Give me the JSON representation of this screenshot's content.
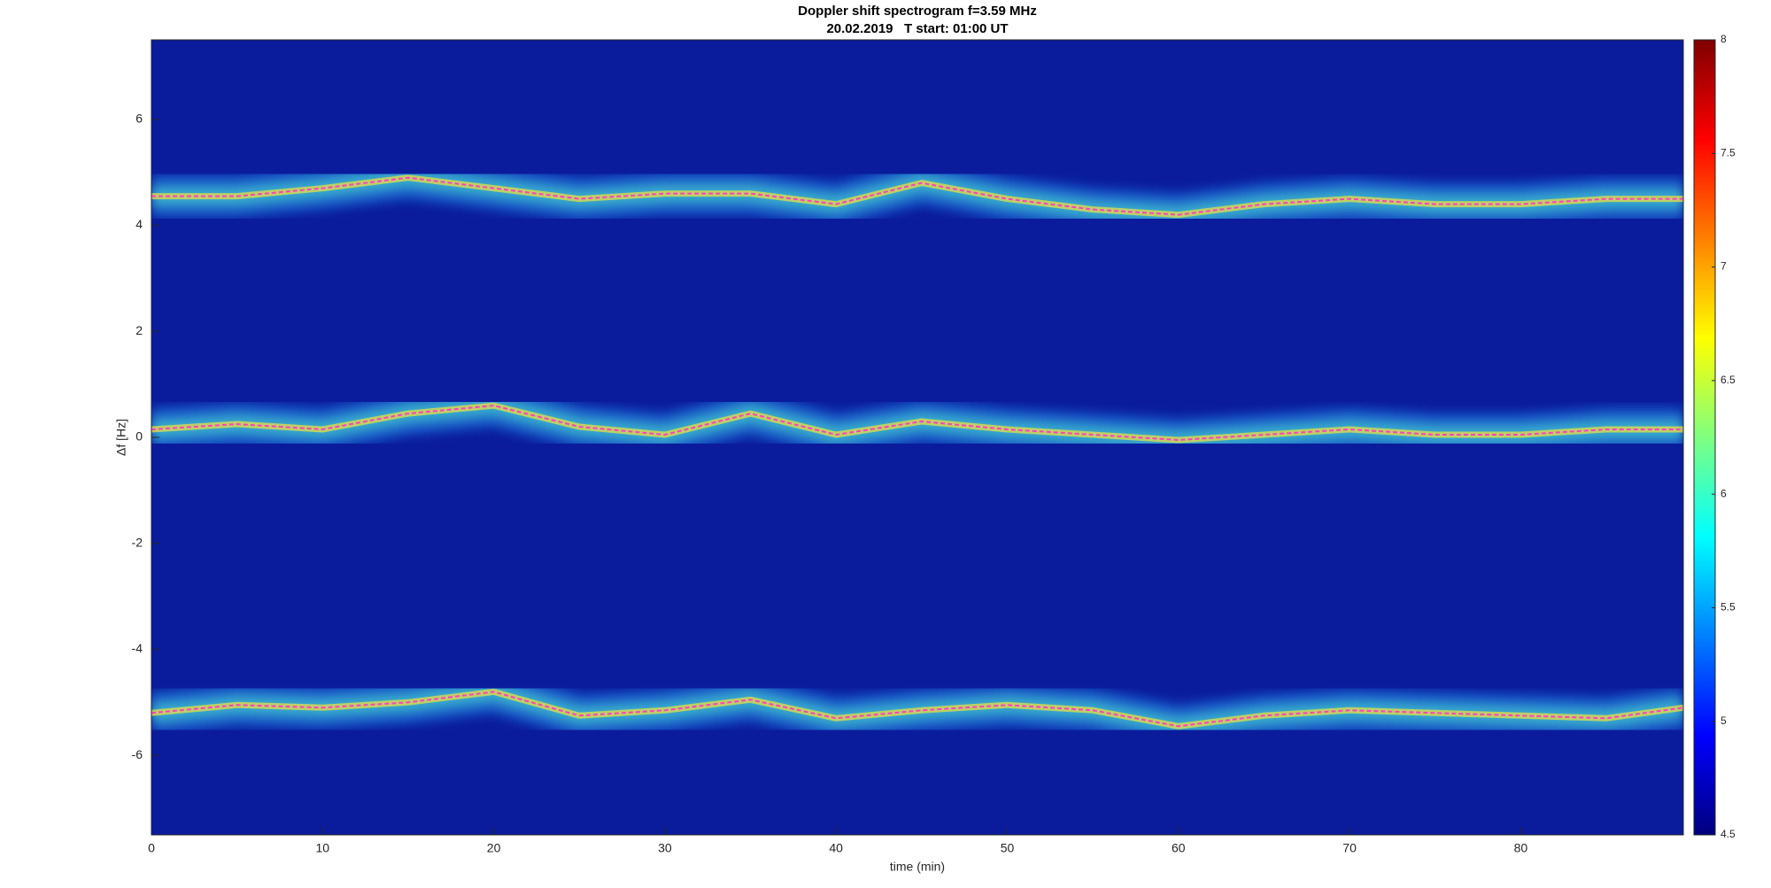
{
  "chart_data": {
    "type": "spectrogram",
    "title": "Doppler shift spectrogram f=3.59 MHz",
    "subtitle": "20.02.2019   T start: 01:00 UT",
    "x_label": "time (min)",
    "y_label": "Δf [Hz]",
    "x": [
      0,
      5,
      10,
      15,
      20,
      25,
      30,
      35,
      40,
      45,
      50,
      55,
      60,
      65,
      70,
      75,
      80,
      85,
      89.5
    ],
    "series": [
      {
        "color": "#ff40c0",
        "values": [
          4.55,
          4.55,
          4.7,
          4.9,
          4.7,
          4.5,
          4.6,
          4.6,
          4.4,
          4.8,
          4.5,
          4.3,
          4.2,
          4.4,
          4.5,
          4.4,
          4.4,
          4.5,
          4.5
        ]
      },
      {
        "color": "#ff40c0",
        "values": [
          0.15,
          0.25,
          0.15,
          0.45,
          0.6,
          0.2,
          0.05,
          0.45,
          0.05,
          0.3,
          0.15,
          0.05,
          -0.05,
          0.05,
          0.15,
          0.05,
          0.05,
          0.15,
          0.15
        ]
      },
      {
        "color": "#ff40c0",
        "values": [
          -5.2,
          -5.05,
          -5.1,
          -5.0,
          -4.8,
          -5.25,
          -5.15,
          -4.95,
          -5.3,
          -5.15,
          -5.05,
          -5.15,
          -5.45,
          -5.25,
          -5.15,
          -5.2,
          -5.25,
          -5.3,
          -5.1
        ]
      }
    ],
    "xlim": [
      0,
      89.5
    ],
    "xticks": [
      0,
      10,
      20,
      30,
      40,
      50,
      60,
      70,
      80
    ],
    "ylim": [
      -7.5,
      7.5
    ],
    "yticks": [
      -6,
      -4,
      -2,
      0,
      2,
      4,
      6
    ],
    "colorbar": {
      "colormap": "jet",
      "lim": [
        4.5,
        8
      ],
      "ticks": [
        4.5,
        5,
        5.5,
        6,
        6.5,
        7,
        7.5,
        8
      ]
    }
  }
}
